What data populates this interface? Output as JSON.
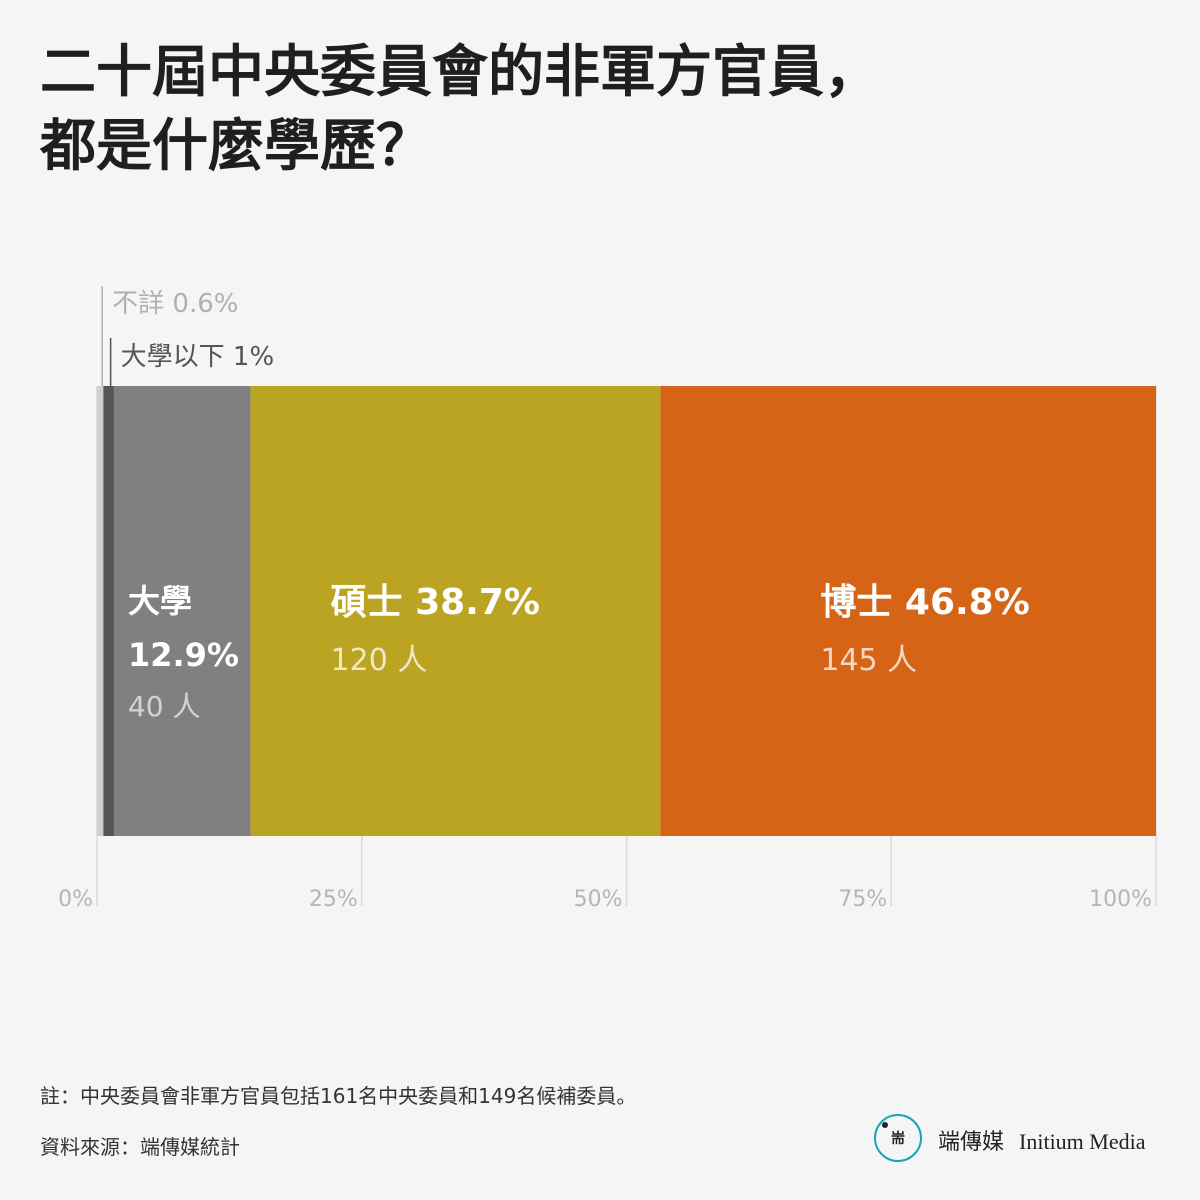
{
  "title": {
    "line1": "二十屆中央委員會的非軍方官員，",
    "line2": "都是什麼學歷？"
  },
  "chart_data": {
    "type": "bar",
    "orientation": "horizontal-stacked",
    "xlim": [
      0,
      100
    ],
    "x_ticks": [
      "0%",
      "25%",
      "50%",
      "75%",
      "100%"
    ],
    "x_tick_values": [
      0,
      25,
      50,
      75,
      100
    ],
    "grid": true,
    "segments": [
      {
        "label": "不詳",
        "percent": 0.6,
        "percent_text": "0.6%",
        "color": "#cfcfcf",
        "callout": true
      },
      {
        "label": "大學以下",
        "percent": 1.0,
        "percent_text": "1%",
        "color": "#555555",
        "callout": true
      },
      {
        "label": "大學",
        "percent": 12.9,
        "percent_text": "12.9%",
        "count_text": "40 人",
        "color": "#808080"
      },
      {
        "label": "碩士",
        "percent": 38.7,
        "percent_text": "38.7%",
        "count_text": "120 人",
        "color": "#bca423"
      },
      {
        "label": "博士",
        "percent": 46.8,
        "percent_text": "46.8%",
        "count_text": "145 人",
        "color": "#d56417"
      }
    ]
  },
  "notes": {
    "note": "註：中央委員會非軍方官員包括161名中央委員和149名候補委員。",
    "source": "資料來源：端傳媒統計"
  },
  "logo": {
    "mark": "耑",
    "name": "端傳媒",
    "name_en": "Initium Media",
    "accent": "#19a3b4"
  }
}
